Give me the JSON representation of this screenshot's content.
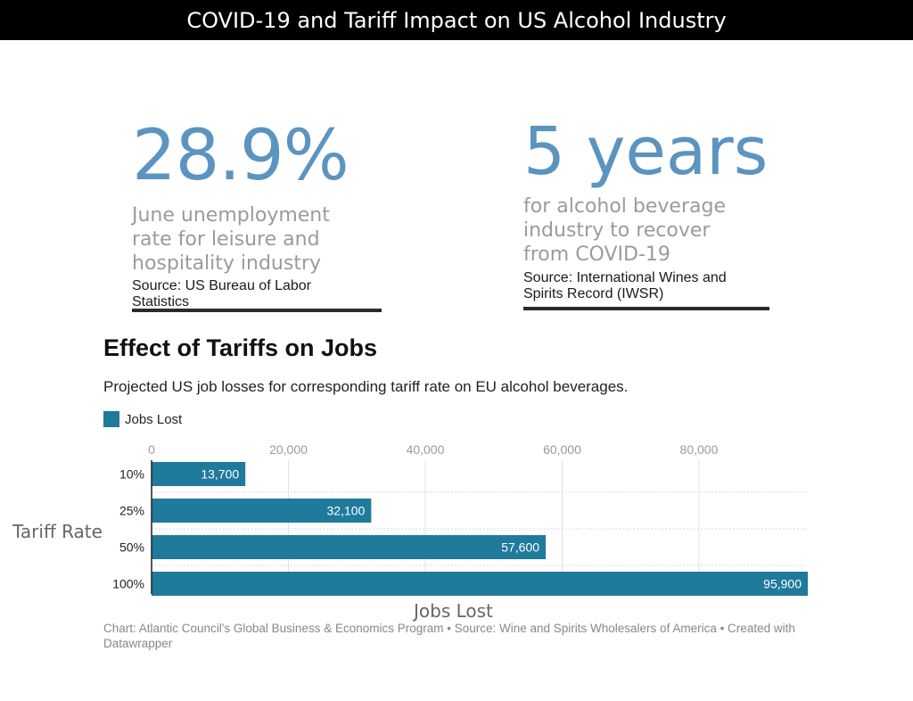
{
  "header": {
    "title": "COVID-19 and Tariff Impact on US Alcohol Industry"
  },
  "stats": [
    {
      "value": "28.9%",
      "description": "June unemployment\nrate for leisure and\nhospitality industry",
      "source": "Source: US Bureau of Labor\nStatistics"
    },
    {
      "value": "5 years",
      "description": "for alcohol beverage\nindustry to recover\nfrom COVID-19",
      "source": "Source: International Wines and\nSpirits Record (IWSR)"
    }
  ],
  "colors": {
    "bar": "#1f7a9c",
    "stat_accent": "#5b94c0",
    "header_bg": "#000000"
  },
  "chart_data": {
    "type": "bar",
    "orientation": "horizontal",
    "title": "Effect of Tariffs on Jobs",
    "subtitle": "Projected US job losses for corresponding tariff rate on EU alcohol beverages.",
    "categories": [
      "10%",
      "25%",
      "50%",
      "100%"
    ],
    "series": [
      {
        "name": "Jobs Lost",
        "values": [
          13700,
          32100,
          57600,
          95900
        ]
      }
    ],
    "value_labels": [
      "13,700",
      "32,100",
      "57,600",
      "95,900"
    ],
    "xlabel": "Jobs Lost",
    "ylabel": "Tariff Rate",
    "x_ticks": [
      0,
      20000,
      40000,
      60000,
      80000
    ],
    "x_tick_labels": [
      "0",
      "20,000",
      "40,000",
      "60,000",
      "80,000"
    ],
    "xlim": [
      0,
      95900
    ],
    "grid": true,
    "legend": "top-left"
  },
  "footer": "Chart: Atlantic Council's Global Business & Economics Program • Source: Wine and Spirits Wholesalers of America • Created with Datawrapper"
}
